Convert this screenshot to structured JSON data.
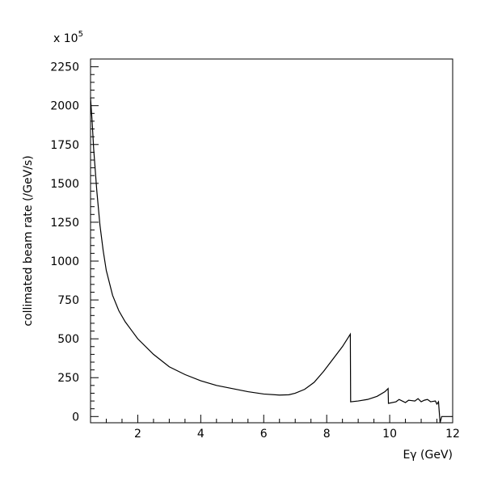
{
  "chart_data": {
    "type": "line",
    "title": "",
    "xlabel": "Eγ (GeV)",
    "ylabel": "collimated beam rate (/GeV/s)",
    "y_multiplier_label": "x 10",
    "y_multiplier_exponent": "5",
    "xlim": [
      0.5,
      12
    ],
    "ylim": [
      -40,
      2300
    ],
    "x_ticks": [
      2,
      4,
      6,
      8,
      10,
      12
    ],
    "y_ticks": [
      0,
      250,
      500,
      750,
      1000,
      1250,
      1500,
      1750,
      2000,
      2250
    ],
    "grid": false,
    "series": [
      {
        "x": [
          0.5,
          0.55,
          0.6,
          0.7,
          0.8,
          0.9,
          1.0,
          1.2,
          1.4,
          1.6,
          1.8,
          2.0,
          2.5,
          3.0,
          3.5,
          4.0,
          4.5,
          5.0,
          5.5,
          6.0,
          6.5,
          6.8,
          7.0,
          7.3,
          7.6,
          7.9,
          8.2,
          8.5,
          8.75,
          8.76,
          9.0,
          9.3,
          9.6,
          9.85,
          9.95,
          9.96,
          10.2,
          10.3,
          10.5,
          10.6,
          10.8,
          10.9,
          11.0,
          11.1,
          11.2,
          11.3,
          11.45,
          11.5,
          11.55,
          11.6,
          11.65,
          12.0
        ],
        "y": [
          2050,
          1900,
          1720,
          1450,
          1230,
          1070,
          940,
          780,
          680,
          610,
          555,
          500,
          400,
          320,
          270,
          230,
          200,
          180,
          160,
          145,
          138,
          140,
          150,
          175,
          220,
          290,
          370,
          450,
          530,
          95,
          100,
          110,
          130,
          160,
          180,
          85,
          95,
          110,
          90,
          105,
          100,
          115,
          95,
          105,
          110,
          95,
          100,
          80,
          95,
          -40,
          0,
          0
        ]
      }
    ]
  }
}
